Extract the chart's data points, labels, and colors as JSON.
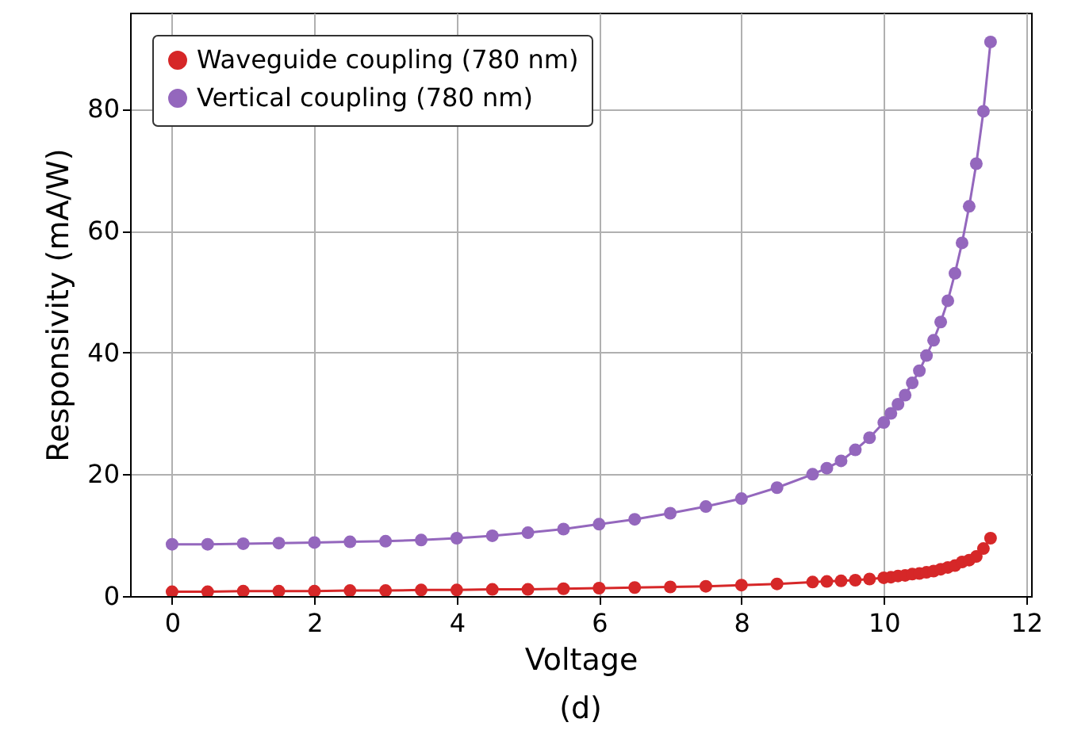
{
  "chart_data": {
    "type": "line",
    "xlabel": "Voltage",
    "ylabel": "Responsivity (mA/W)",
    "annotations": [
      "(d)"
    ],
    "x": [
      0,
      0.5,
      1,
      1.5,
      2,
      2.5,
      3,
      3.5,
      4,
      4.5,
      5,
      5.5,
      6,
      6.5,
      7,
      7.5,
      8,
      8.5,
      9,
      9.2,
      9.4,
      9.6,
      9.8,
      10,
      10.1,
      10.2,
      10.3,
      10.4,
      10.5,
      10.6,
      10.7,
      10.8,
      10.9,
      11,
      11.1,
      11.2,
      11.3,
      11.4,
      11.5
    ],
    "series": [
      {
        "name": "Waveguide coupling (780 nm)",
        "color": "#d62728",
        "values": [
          0.7,
          0.7,
          0.8,
          0.8,
          0.8,
          0.9,
          0.9,
          1.0,
          1.0,
          1.1,
          1.1,
          1.2,
          1.3,
          1.4,
          1.5,
          1.6,
          1.8,
          2.0,
          2.3,
          2.4,
          2.5,
          2.6,
          2.8,
          3.0,
          3.1,
          3.3,
          3.4,
          3.6,
          3.7,
          3.9,
          4.1,
          4.4,
          4.7,
          5.0,
          5.6,
          5.9,
          6.5,
          7.8,
          9.5
        ]
      },
      {
        "name": "Vertical coupling (780 nm)",
        "color": "#9467bd",
        "values": [
          8.5,
          8.5,
          8.6,
          8.7,
          8.8,
          8.9,
          9.0,
          9.2,
          9.5,
          9.9,
          10.4,
          11.0,
          11.8,
          12.6,
          13.6,
          14.7,
          16.0,
          17.8,
          20.0,
          21.0,
          22.2,
          24.0,
          26.0,
          28.5,
          30.0,
          31.5,
          33.0,
          35.0,
          37.0,
          39.5,
          42.0,
          45.0,
          48.5,
          53.0,
          58.0,
          64.0,
          71.0,
          79.6,
          91.0
        ]
      }
    ],
    "xlim": [
      -0.59,
      12.07
    ],
    "xticks": [
      0,
      2,
      4,
      6,
      8,
      10,
      12
    ],
    "ylim": [
      0,
      95.8
    ],
    "yticks": [
      0,
      20,
      40,
      60,
      80
    ],
    "grid": true,
    "legend": "top left",
    "marker": "circle",
    "line_style": "solid"
  }
}
